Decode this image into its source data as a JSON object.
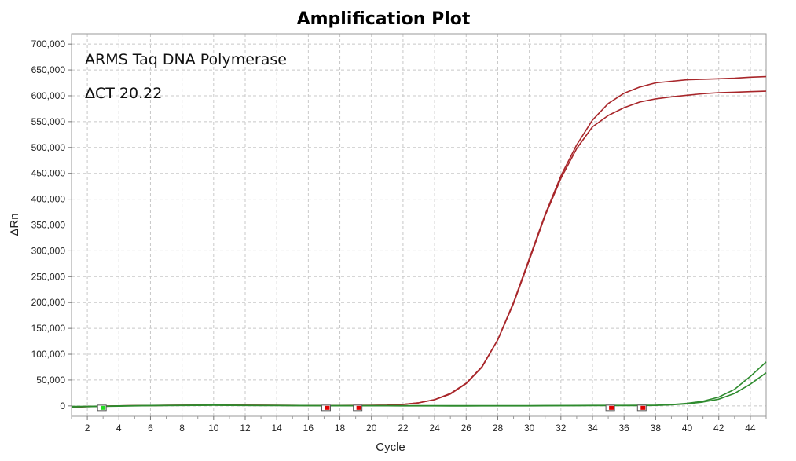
{
  "chart_data": {
    "type": "line",
    "title": "Amplification Plot",
    "xlabel": "Cycle",
    "ylabel": "ΔRn",
    "xlim": [
      1,
      45
    ],
    "ylim": [
      -20000,
      720000
    ],
    "grid": true,
    "x_ticks": [
      2,
      4,
      6,
      8,
      10,
      12,
      14,
      16,
      18,
      20,
      22,
      24,
      26,
      28,
      30,
      32,
      34,
      36,
      38,
      40,
      42,
      44
    ],
    "y_ticks": [
      0,
      50000,
      100000,
      150000,
      200000,
      250000,
      300000,
      350000,
      400000,
      450000,
      500000,
      550000,
      600000,
      650000,
      700000
    ],
    "y_tick_labels": [
      "0",
      "50,000",
      "100,000",
      "150,000",
      "200,000",
      "250,000",
      "300,000",
      "350,000",
      "400,000",
      "450,000",
      "500,000",
      "550,000",
      "600,000",
      "650,000",
      "700,000"
    ],
    "annotations": [
      "ARMS Taq DNA Polymerase",
      "ΔCT 20.22"
    ],
    "colors": {
      "red": "#a8262a",
      "green": "#2e8b2e",
      "marker_red": "#e00000",
      "marker_green": "#22dd22"
    },
    "series": [
      {
        "name": "red-1",
        "color": "#a8262a",
        "x": [
          1,
          2,
          3,
          4,
          5,
          6,
          7,
          8,
          9,
          10,
          11,
          12,
          13,
          14,
          15,
          16,
          17,
          18,
          19,
          20,
          21,
          22,
          23,
          24,
          25,
          26,
          27,
          28,
          29,
          30,
          31,
          32,
          33,
          34,
          35,
          36,
          37,
          38,
          39,
          40,
          41,
          42,
          43,
          44,
          45
        ],
        "y": [
          -2000,
          -1000,
          -500,
          0,
          500,
          800,
          1000,
          1200,
          1500,
          1800,
          1600,
          1400,
          1200,
          1000,
          900,
          800,
          800,
          800,
          900,
          1000,
          1500,
          3000,
          6000,
          12000,
          23000,
          43000,
          75000,
          128000,
          200000,
          285000,
          370000,
          445000,
          505000,
          553000,
          585000,
          605000,
          617000,
          625000,
          628000,
          631000,
          632000,
          633000,
          634000,
          636000,
          637000
        ]
      },
      {
        "name": "red-2",
        "color": "#a8262a",
        "x": [
          1,
          2,
          3,
          4,
          5,
          6,
          7,
          8,
          9,
          10,
          11,
          12,
          13,
          14,
          15,
          16,
          17,
          18,
          19,
          20,
          21,
          22,
          23,
          24,
          25,
          26,
          27,
          28,
          29,
          30,
          31,
          32,
          33,
          34,
          35,
          36,
          37,
          38,
          39,
          40,
          41,
          42,
          43,
          44,
          45
        ],
        "y": [
          -3000,
          -1500,
          -800,
          0,
          400,
          700,
          900,
          1100,
          1400,
          1700,
          1500,
          1300,
          1100,
          900,
          800,
          700,
          700,
          700,
          800,
          900,
          1400,
          3000,
          6000,
          12000,
          24000,
          44000,
          76000,
          128000,
          198000,
          282000,
          368000,
          440000,
          498000,
          540000,
          562000,
          577000,
          588000,
          594000,
          598000,
          601000,
          604000,
          606000,
          607000,
          608000,
          609000
        ]
      },
      {
        "name": "green-1",
        "color": "#2e8b2e",
        "x": [
          1,
          2,
          3,
          4,
          5,
          6,
          7,
          8,
          9,
          10,
          11,
          12,
          13,
          14,
          15,
          16,
          17,
          18,
          19,
          20,
          21,
          22,
          23,
          24,
          25,
          26,
          27,
          28,
          29,
          30,
          31,
          32,
          33,
          34,
          35,
          36,
          37,
          38,
          39,
          40,
          41,
          42,
          43,
          44,
          45
        ],
        "y": [
          -1000,
          -800,
          -500,
          0,
          500,
          800,
          1000,
          1200,
          1400,
          1600,
          1400,
          1200,
          1000,
          900,
          800,
          700,
          600,
          600,
          600,
          600,
          600,
          500,
          400,
          300,
          300,
          300,
          400,
          400,
          500,
          500,
          600,
          700,
          800,
          900,
          900,
          1000,
          1100,
          1300,
          2500,
          5000,
          9000,
          17000,
          32000,
          57000,
          85000
        ]
      },
      {
        "name": "green-2",
        "color": "#2e8b2e",
        "x": [
          1,
          2,
          3,
          4,
          5,
          6,
          7,
          8,
          9,
          10,
          11,
          12,
          13,
          14,
          15,
          16,
          17,
          18,
          19,
          20,
          21,
          22,
          23,
          24,
          25,
          26,
          27,
          28,
          29,
          30,
          31,
          32,
          33,
          34,
          35,
          36,
          37,
          38,
          39,
          40,
          41,
          42,
          43,
          44,
          45
        ],
        "y": [
          -2000,
          -1500,
          -1000,
          -500,
          0,
          300,
          600,
          800,
          1000,
          1200,
          1000,
          800,
          600,
          500,
          400,
          300,
          200,
          200,
          200,
          200,
          200,
          100,
          0,
          0,
          -100,
          -100,
          0,
          0,
          100,
          100,
          200,
          300,
          400,
          500,
          500,
          600,
          700,
          900,
          2000,
          4000,
          7500,
          13000,
          24000,
          42000,
          64000
        ]
      }
    ],
    "markers": [
      {
        "cycle": 3,
        "color": "#22dd22"
      },
      {
        "cycle": 17.2,
        "color": "#e00000"
      },
      {
        "cycle": 19.2,
        "color": "#e00000"
      },
      {
        "cycle": 35.2,
        "color": "#e00000"
      },
      {
        "cycle": 37.2,
        "color": "#e00000"
      }
    ]
  }
}
